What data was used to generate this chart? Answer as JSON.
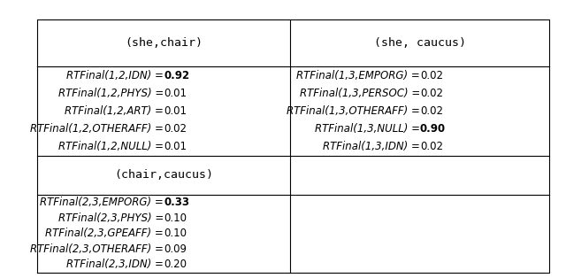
{
  "title": "",
  "col1_header": "(she,chair)",
  "col2_header": "(she, caucus)",
  "col3_header": "(chair,caucus)",
  "cell_top_left": [
    [
      "RTFinal(1,2,IDN) =",
      "0.92",
      true
    ],
    [
      "RTFinal(1,2,PHYS) =",
      "0.01",
      false
    ],
    [
      "RTFinal(1,2,ART) =",
      "0.01",
      false
    ],
    [
      "RTFinal(1,2,OTHERAFF) =",
      "0.02",
      false
    ],
    [
      "RTFinal(1,2,NULL) =",
      "0.01",
      false
    ]
  ],
  "cell_top_right": [
    [
      "RTFinal(1,3,EMPORG) =",
      "0.02",
      false
    ],
    [
      "RTFinal(1,3,PERSOC) =",
      "0.02",
      false
    ],
    [
      "RTFinal(1,3,OTHERAFF) =",
      "0.02",
      false
    ],
    [
      "RTFinal(1,3,NULL) =",
      "0.90",
      true
    ],
    [
      "RTFinal(1,3,IDN) =",
      "0.02",
      false
    ]
  ],
  "cell_bottom_left": [
    [
      "RTFinal(2,3,EMPORG) =",
      "0.33",
      true
    ],
    [
      "RTFinal(2,3,PHYS) =",
      "0.10",
      false
    ],
    [
      "RTFinal(2,3,GPEAFF) =",
      "0.10",
      false
    ],
    [
      "RTFinal(2,3,OTHERAFF) =",
      "0.09",
      false
    ],
    [
      "RTFinal(2,3,IDN) =",
      "0.20",
      false
    ]
  ],
  "bg_color": "#ffffff",
  "line_color": "#000000",
  "text_color": "#000000",
  "header_font_size": 9.5,
  "cell_font_size": 8.5,
  "figsize": [
    6.4,
    3.14
  ],
  "dpi": 100
}
